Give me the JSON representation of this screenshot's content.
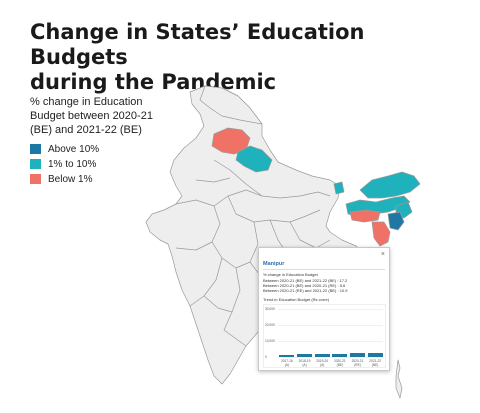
{
  "title_line1": "Change in States’ Education Budgets",
  "title_line2": "during the Pandemic",
  "legend": {
    "title_line1": "% change in Education",
    "title_line2": "Budget between 2020-21",
    "title_line3": "(BE) and 2021-22 (BE)",
    "items": [
      {
        "label": "Above 10%",
        "color": "#1f78a4"
      },
      {
        "label": "1% to 10%",
        "color": "#1fb2bc"
      },
      {
        "label": "Below 1%",
        "color": "#f07266"
      }
    ]
  },
  "colors": {
    "base_state": "#eeeeee",
    "state_border": "#9a9a9a",
    "above": "#1f78a4",
    "mid": "#1fb2bc",
    "below": "#f07266"
  },
  "popup": {
    "close": "×",
    "state": "Manipur",
    "caption": "% change in Education Budget",
    "line1": "Between 2020-21 (BE) and 2021-22 (BE) : 17.2",
    "line2": "Between 2020-21 (BE) and 2020-21 (RE) : 5.6",
    "line3": "Between 2020-21 (RE) and 2021-22 (BE) : 10.9",
    "chart_title": "Trend in Education Budget (Rs crore)",
    "chart": {
      "y_ticks": [
        "30,000",
        "20,000",
        "10,000",
        "0"
      ],
      "categories": [
        "2017-18 (A)",
        "2018-19 (A)",
        "2019-20 (A)",
        "2020-21 (BE)",
        "2020-21 (RE)",
        "2021-22 (BE)"
      ],
      "values": [
        1300,
        1650,
        2000,
        2100,
        2200,
        2450
      ],
      "y_max": 30000
    }
  }
}
